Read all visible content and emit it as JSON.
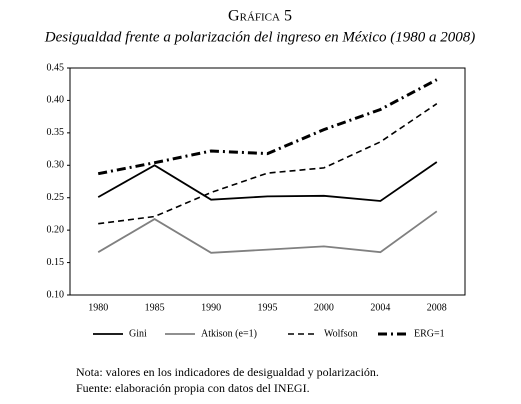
{
  "chart_data": {
    "type": "line",
    "title": "Gráfica 5",
    "subtitle": "Desigualdad frente a polarización del ingreso en México (1980 a 2008)",
    "categories": [
      "1980",
      "1985",
      "1990",
      "1995",
      "2000",
      "2004",
      "2008"
    ],
    "series": [
      {
        "name": "Gini",
        "color": "#000000",
        "style": "solid",
        "values": [
          0.251,
          0.3,
          0.247,
          0.252,
          0.253,
          0.245,
          0.305
        ]
      },
      {
        "name": "Atkison (e=1)",
        "color": "#808080",
        "style": "solid",
        "values": [
          0.166,
          0.217,
          0.165,
          0.17,
          0.175,
          0.166,
          0.229
        ]
      },
      {
        "name": "Wolfson",
        "color": "#000000",
        "style": "dashed",
        "values": [
          0.21,
          0.221,
          0.258,
          0.288,
          0.296,
          0.336,
          0.395
        ]
      },
      {
        "name": "ERG=1",
        "color": "#000000",
        "style": "dashdot",
        "values": [
          0.287,
          0.304,
          0.322,
          0.318,
          0.355,
          0.386,
          0.432
        ]
      }
    ],
    "ylim": [
      0.1,
      0.45
    ],
    "yticks": [
      {
        "value": 0.1,
        "label": "0.10"
      },
      0.15,
      {
        "value": 0.2,
        "label": "0.20"
      },
      0.25,
      {
        "value": 0.3,
        "label": "0.30"
      },
      0.35,
      {
        "value": 0.4,
        "label": "0.40"
      },
      0.45
    ],
    "grid": false,
    "legend": "bottom",
    "notes": [
      "Nota: valores en los indicadores de desigualdad y polarización.",
      "Fuente: elaboración propia con datos del INEGI."
    ]
  }
}
